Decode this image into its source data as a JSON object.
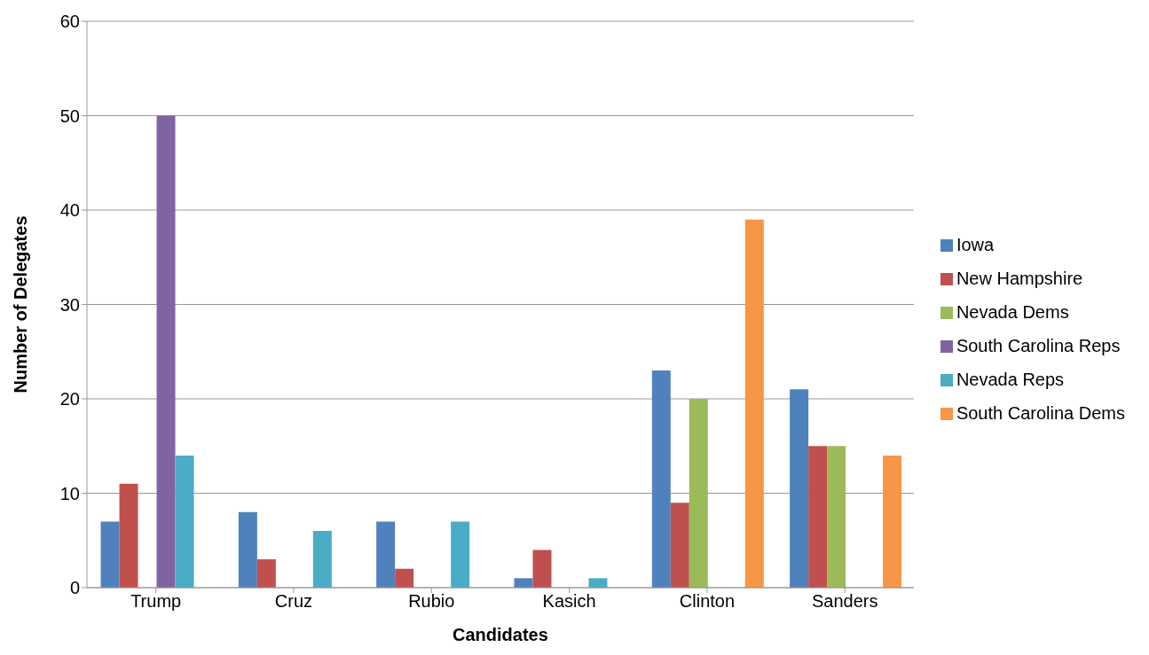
{
  "chart_data": {
    "type": "bar",
    "xlabel": "Candidates",
    "ylabel": "Number of Delegates",
    "categories": [
      "Trump",
      "Cruz",
      "Rubio",
      "Kasich",
      "Clinton",
      "Sanders"
    ],
    "series": [
      {
        "name": "Iowa",
        "color": "#4f81bd",
        "values": [
          7,
          8,
          7,
          1,
          23,
          21
        ]
      },
      {
        "name": "New Hampshire",
        "color": "#c0504d",
        "values": [
          11,
          3,
          2,
          4,
          9,
          15
        ]
      },
      {
        "name": "Nevada Dems",
        "color": "#9bbb59",
        "values": [
          null,
          null,
          null,
          null,
          20,
          15
        ]
      },
      {
        "name": "South Carolina Reps",
        "color": "#8064a2",
        "values": [
          50,
          null,
          null,
          null,
          null,
          null
        ]
      },
      {
        "name": "Nevada Reps",
        "color": "#4bacc6",
        "values": [
          14,
          6,
          7,
          1,
          null,
          null
        ]
      },
      {
        "name": "South Carolina Dems",
        "color": "#f79646",
        "values": [
          null,
          null,
          null,
          null,
          39,
          14
        ]
      }
    ],
    "ylim": [
      0,
      60
    ],
    "yticks": [
      0,
      10,
      20,
      30,
      40,
      50,
      60
    ],
    "grid": "y",
    "legend": "right"
  }
}
